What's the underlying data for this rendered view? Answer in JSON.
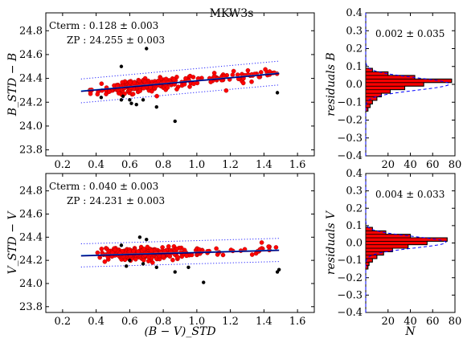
{
  "figure_title": "MKW3s",
  "chart_data": [
    {
      "type": "scatter",
      "ylabel": "B_STD − B",
      "xlabel": "",
      "xlim": [
        0.1,
        1.7
      ],
      "ylim": [
        23.75,
        24.95
      ],
      "xticks": [
        "0.2",
        "0.4",
        "0.6",
        "0.8",
        "1.0",
        "1.2",
        "1.4",
        "1.6"
      ],
      "yticks": [
        "23.8",
        "24.0",
        "24.2",
        "24.4",
        "24.6",
        "24.8"
      ],
      "annotations": [
        "Cterm : 0.128 ± 0.003",
        "ZP : 24.255 ± 0.003"
      ],
      "fit_line": {
        "x": [
          0.31,
          1.49
        ],
        "y": [
          24.295,
          24.445
        ]
      },
      "fit_upper": {
        "x": [
          0.31,
          1.49
        ],
        "y": [
          24.395,
          24.545
        ]
      },
      "fit_lower": {
        "x": [
          0.31,
          1.49
        ],
        "y": [
          24.195,
          24.345
        ]
      },
      "outliers": [
        [
          0.55,
          24.5
        ],
        [
          0.7,
          24.65
        ],
        [
          0.87,
          24.04
        ],
        [
          0.76,
          24.16
        ],
        [
          0.55,
          24.22
        ],
        [
          0.61,
          24.19
        ],
        [
          0.64,
          24.18
        ],
        [
          0.6,
          24.22
        ],
        [
          1.48,
          24.28
        ],
        [
          0.68,
          24.22
        ],
        [
          0.43,
          24.24
        ],
        [
          0.56,
          24.25
        ]
      ]
    },
    {
      "type": "scatter",
      "ylabel": "V_STD − V",
      "xlabel": "(B − V)_STD",
      "xlim": [
        0.1,
        1.7
      ],
      "ylim": [
        23.75,
        24.95
      ],
      "xticks": [
        "0.2",
        "0.4",
        "0.6",
        "0.8",
        "1.0",
        "1.2",
        "1.4",
        "1.6"
      ],
      "yticks": [
        "23.8",
        "24.0",
        "24.2",
        "24.4",
        "24.6",
        "24.8"
      ],
      "annotations": [
        "Cterm : 0.040 ± 0.003",
        "ZP : 24.231 ± 0.003"
      ],
      "fit_line": {
        "x": [
          0.31,
          1.49
        ],
        "y": [
          24.243,
          24.29
        ]
      },
      "fit_upper": {
        "x": [
          0.31,
          1.49
        ],
        "y": [
          24.343,
          24.39
        ]
      },
      "fit_lower": {
        "x": [
          0.31,
          1.49
        ],
        "y": [
          24.143,
          24.19
        ]
      },
      "outliers": [
        [
          0.55,
          24.33
        ],
        [
          0.66,
          24.4
        ],
        [
          0.7,
          24.38
        ],
        [
          1.04,
          24.01
        ],
        [
          0.87,
          24.1
        ],
        [
          0.58,
          24.15
        ],
        [
          0.76,
          24.14
        ],
        [
          0.95,
          24.14
        ],
        [
          1.48,
          24.1
        ],
        [
          1.49,
          24.12
        ],
        [
          0.6,
          24.2
        ],
        [
          0.68,
          24.17
        ]
      ]
    },
    {
      "type": "histogram",
      "ylabel": "residuals B",
      "xlabel": "",
      "xlim": [
        0,
        80
      ],
      "ylim": [
        -0.4,
        0.4
      ],
      "xticks": [
        "20",
        "40",
        "60",
        "80"
      ],
      "yticks": [
        "−0.4",
        "−0.3",
        "−0.2",
        "−0.1",
        "0.0",
        "0.1",
        "0.2",
        "0.3",
        "0.4"
      ],
      "annotation": "0.002 ± 0.035",
      "bin_edges": [
        -0.15,
        -0.13,
        -0.11,
        -0.09,
        -0.07,
        -0.05,
        -0.03,
        -0.01,
        0.01,
        0.03,
        0.05,
        0.07,
        0.09
      ],
      "counts": [
        2,
        4,
        6,
        10,
        14,
        22,
        35,
        52,
        77,
        44,
        20,
        6
      ],
      "gauss_peak": 75,
      "gauss_sigma": 0.035,
      "gauss_mean": 0.002
    },
    {
      "type": "histogram",
      "ylabel": "residuals V",
      "xlabel": "N",
      "xlim": [
        0,
        80
      ],
      "ylim": [
        -0.4,
        0.4
      ],
      "xticks": [
        "20",
        "40",
        "60",
        "80"
      ],
      "yticks": [
        "−0.4",
        "−0.3",
        "−0.2",
        "−0.1",
        "0.0",
        "0.1",
        "0.2",
        "0.3",
        "0.4"
      ],
      "annotation": "0.004 ± 0.033",
      "bin_edges": [
        -0.15,
        -0.13,
        -0.11,
        -0.09,
        -0.07,
        -0.05,
        -0.03,
        -0.01,
        0.01,
        0.03,
        0.05,
        0.07,
        0.09
      ],
      "counts": [
        2,
        3,
        6,
        10,
        16,
        24,
        38,
        55,
        73,
        40,
        18,
        6
      ],
      "gauss_peak": 72,
      "gauss_sigma": 0.033,
      "gauss_mean": 0.004
    }
  ]
}
